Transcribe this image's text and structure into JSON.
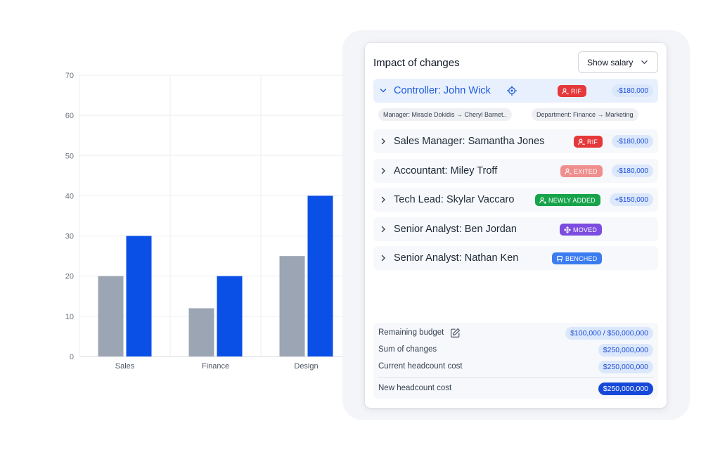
{
  "chart_data": {
    "type": "bar",
    "categories": [
      "Sales",
      "Finance",
      "Design"
    ],
    "series": [
      {
        "values": [
          20,
          12,
          25
        ],
        "color": "#9ca5b3"
      },
      {
        "values": [
          30,
          20,
          40
        ],
        "color": "#0a4fe6"
      }
    ],
    "title": "",
    "xlabel": "",
    "ylabel": "",
    "ylim": [
      0,
      70
    ],
    "yticks": [
      0,
      10,
      20,
      30,
      40,
      50,
      60,
      70
    ],
    "grid": true,
    "legend": "none"
  },
  "panel": {
    "title": "Impact of changes",
    "salary_toggle_label": "Show salary",
    "changes": [
      {
        "title": "Controller: John Wick",
        "expanded": true,
        "badge": {
          "label": "RIF",
          "icon": "user-remove-icon",
          "color": "#e5383b"
        },
        "amount": "-$180,000",
        "details": [
          "Manager: Miracle Dokidis → Cheryl Barnet..",
          "Department: Finance → Marketing"
        ]
      },
      {
        "title": "Sales Manager: Samantha Jones",
        "expanded": false,
        "badge": {
          "label": "RIF",
          "icon": "user-remove-icon",
          "color": "#e5383b"
        },
        "amount": "-$180,000"
      },
      {
        "title": "Accountant: Miley Troff",
        "expanded": false,
        "badge": {
          "label": "EXITED",
          "icon": "user-remove-icon",
          "color": "#f08e8e"
        },
        "amount": "-$180,000"
      },
      {
        "title": "Tech Lead: Skylar Vaccaro",
        "expanded": false,
        "badge": {
          "label": "NEWLY ADDED",
          "icon": "user-add-icon",
          "color": "#16a34a"
        },
        "amount": "+$150,000"
      },
      {
        "title": "Senior Analyst: Ben Jordan",
        "expanded": false,
        "badge": {
          "label": "MOVED",
          "icon": "move-icon",
          "color": "#7c4de0"
        },
        "amount": ""
      },
      {
        "title": "Senior Analyst: Nathan Ken",
        "expanded": false,
        "badge": {
          "label": "BENCHED",
          "icon": "bench-icon",
          "color": "#3b7cf0"
        },
        "amount": ""
      }
    ],
    "summary": {
      "remaining_budget_label": "Remaining budget",
      "remaining_budget_value": "$100,000 / $50,000,000",
      "sum_changes_label": "Sum of changes",
      "sum_changes_value": "$250,000,000",
      "current_cost_label": "Current headcount cost",
      "current_cost_value": "$250,000,000",
      "new_cost_label": "New headcount cost",
      "new_cost_value": "$250,000,000"
    }
  }
}
